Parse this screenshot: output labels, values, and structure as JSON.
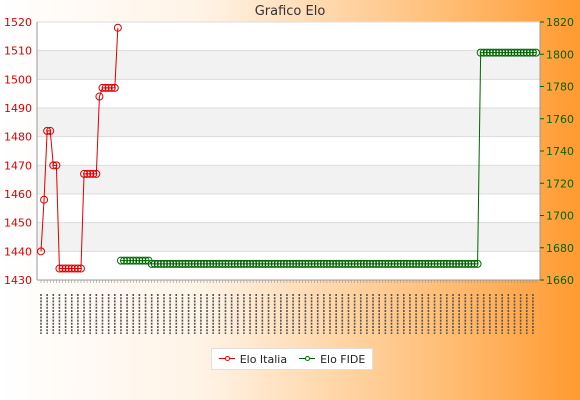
{
  "chart_data": {
    "type": "line",
    "title": "Grafico Elo",
    "legend_position": "bottom",
    "grid": true,
    "y_left": {
      "min": 1430,
      "max": 1520,
      "ticks": [
        1430,
        1440,
        1450,
        1460,
        1470,
        1480,
        1490,
        1500,
        1510,
        1520
      ]
    },
    "y_right": {
      "min": 1660,
      "max": 1820,
      "ticks": [
        1660,
        1680,
        1700,
        1720,
        1740,
        1760,
        1780,
        1800,
        1820
      ]
    },
    "series": [
      {
        "name": "Elo Italia",
        "axis": "left",
        "color": "#dd0000",
        "values": [
          1440,
          1458,
          1482,
          1482,
          1470,
          1470,
          1434,
          1434,
          1434,
          1434,
          1434,
          1434,
          1434,
          1434,
          1467,
          1467,
          1467,
          1467,
          1467,
          1494,
          1497,
          1497,
          1497,
          1497,
          1497,
          1518
        ]
      },
      {
        "name": "Elo FIDE",
        "axis": "right",
        "color": "#006600",
        "start_index": 26,
        "segments": [
          {
            "value": 1672,
            "count": 10
          },
          {
            "value": 1670,
            "count": 107
          },
          {
            "value": 1801,
            "count": 19
          }
        ]
      }
    ]
  },
  "legend": {
    "italia_label": "Elo Italia",
    "fide_label": "Elo FIDE",
    "italia_color": "#dd0000",
    "fide_color": "#006600"
  }
}
